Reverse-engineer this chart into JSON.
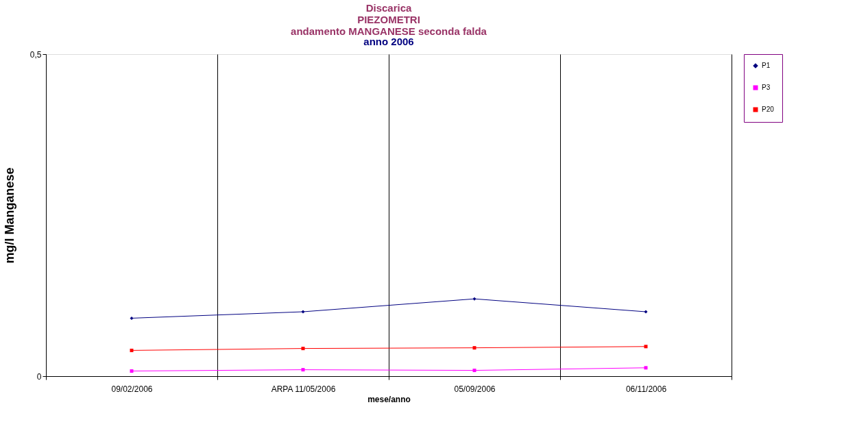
{
  "chart_data": {
    "type": "line",
    "title": [
      "Discarica",
      "PIEZOMETRI",
      "andamento MANGANESE seconda falda"
    ],
    "subtitle": "anno 2006",
    "xlabel": "mese/anno",
    "ylabel": "mg/l Manganese",
    "categories": [
      "09/02/2006",
      "ARPA 11/05/2006",
      "05/09/2006",
      "06/11/2006"
    ],
    "series": [
      {
        "name": "P1",
        "color": "#000080",
        "marker": "diamond",
        "values": [
          0.09,
          0.1,
          0.12,
          0.1
        ]
      },
      {
        "name": "P3",
        "color": "#ff00ff",
        "marker": "square",
        "values": [
          0.008,
          0.01,
          0.009,
          0.013
        ]
      },
      {
        "name": "P20",
        "color": "#ff0000",
        "marker": "square",
        "values": [
          0.04,
          0.043,
          0.044,
          0.046
        ]
      }
    ],
    "ylim": [
      0,
      0.5
    ],
    "yticks": [
      0,
      {
        "value": 0.5,
        "label": "0,5"
      }
    ],
    "grid": "x",
    "legend": "right",
    "line_style": "solid"
  }
}
